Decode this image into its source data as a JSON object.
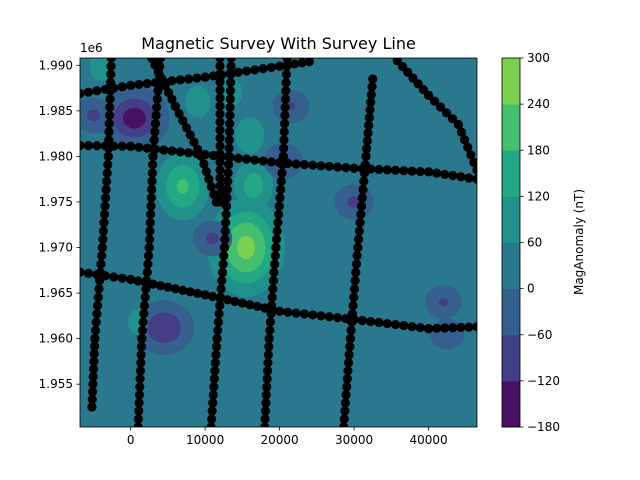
{
  "chart_data": {
    "type": "heatmap",
    "subtype": "filled-contour with survey-line scatter overlay",
    "title": "Magnetic Survey With Survey Line",
    "xlabel": "",
    "ylabel": "",
    "y_offset_text": "1e6",
    "xlim": [
      -6800,
      46500
    ],
    "ylim": [
      1950300,
      1990800
    ],
    "x_ticks": [
      0,
      10000,
      20000,
      30000,
      40000
    ],
    "x_tick_labels": [
      "0",
      "10000",
      "20000",
      "30000",
      "40000"
    ],
    "y_ticks": [
      1955000,
      1960000,
      1965000,
      1970000,
      1975000,
      1980000,
      1985000,
      1990000
    ],
    "y_tick_labels": [
      "1.955",
      "1.960",
      "1.965",
      "1.970",
      "1.975",
      "1.980",
      "1.985",
      "1.990"
    ],
    "grid": false,
    "colorbar": {
      "label": "MagAnomaly (nT)",
      "levels": [
        -180,
        -120,
        -60,
        0,
        60,
        120,
        180,
        240,
        300
      ],
      "tick_labels": [
        "−180",
        "−120",
        "−60",
        "0",
        "60",
        "120",
        "180",
        "240",
        "300"
      ],
      "colors": [
        "#471164",
        "#433e85",
        "#35608d",
        "#2a788e",
        "#21918c",
        "#22a884",
        "#44bf70",
        "#7ad151",
        "#d2e21b"
      ]
    },
    "background_level_color": "#2a788e",
    "anomalies": [
      {
        "x": 500,
        "y": 1984200,
        "value": -130
      },
      {
        "x": 4500,
        "y": 1961200,
        "value": -110
      },
      {
        "x": 1000,
        "y": 1961800,
        "value": 95
      },
      {
        "x": 15500,
        "y": 1970000,
        "value": 260
      },
      {
        "x": 7000,
        "y": 1976700,
        "value": 190
      },
      {
        "x": 16500,
        "y": 1976800,
        "value": 150
      },
      {
        "x": 16000,
        "y": 1982300,
        "value": 120
      },
      {
        "x": 9000,
        "y": 1986000,
        "value": 110
      },
      {
        "x": 13500,
        "y": 1987000,
        "value": 100
      },
      {
        "x": -4000,
        "y": 1989800,
        "value": 100
      },
      {
        "x": 11000,
        "y": 1971000,
        "value": -70
      },
      {
        "x": -5000,
        "y": 1984500,
        "value": -70
      },
      {
        "x": 42000,
        "y": 1964000,
        "value": -65
      },
      {
        "x": 20500,
        "y": 1979500,
        "value": -70
      },
      {
        "x": 30000,
        "y": 1975000,
        "value": -70
      },
      {
        "x": 42500,
        "y": 1960500,
        "value": -60
      },
      {
        "x": 21500,
        "y": 1985500,
        "value": -65
      }
    ],
    "survey_line": {
      "marker": "o",
      "color": "#000000",
      "segments": [
        [
          [
            -6800,
            1986900
          ],
          [
            0,
            1987800
          ],
          [
            10000,
            1988700
          ],
          [
            20000,
            1989900
          ],
          [
            24000,
            1990400
          ]
        ],
        [
          [
            -6800,
            1981200
          ],
          [
            0,
            1981100
          ],
          [
            10000,
            1980200
          ],
          [
            20000,
            1979300
          ],
          [
            30000,
            1978700
          ],
          [
            40000,
            1978300
          ],
          [
            46500,
            1977500
          ]
        ],
        [
          [
            -6800,
            1967300
          ],
          [
            0,
            1966500
          ],
          [
            10000,
            1964800
          ],
          [
            20000,
            1963000
          ],
          [
            30000,
            1962100
          ],
          [
            40000,
            1961100
          ],
          [
            46500,
            1961300
          ]
        ],
        [
          [
            2800,
            1990800
          ],
          [
            6000,
            1985500
          ],
          [
            9500,
            1980000
          ],
          [
            11500,
            1975000
          ]
        ],
        [
          [
            12000,
            1990800
          ],
          [
            12000,
            1975000
          ]
        ],
        [
          [
            -2600,
            1990800
          ],
          [
            -3000,
            1980000
          ],
          [
            -3800,
            1970000
          ],
          [
            -4800,
            1960000
          ],
          [
            -5200,
            1952500
          ]
        ],
        [
          [
            4000,
            1990800
          ],
          [
            3000,
            1980000
          ],
          [
            2500,
            1970000
          ],
          [
            1500,
            1960000
          ],
          [
            1000,
            1950300
          ]
        ],
        [
          [
            13500,
            1990800
          ],
          [
            13200,
            1980000
          ],
          [
            12600,
            1970000
          ],
          [
            11600,
            1960000
          ],
          [
            10800,
            1950300
          ]
        ],
        [
          [
            21000,
            1990800
          ],
          [
            20500,
            1980000
          ],
          [
            19500,
            1970000
          ],
          [
            18600,
            1960000
          ],
          [
            18000,
            1950300
          ]
        ],
        [
          [
            32500,
            1988500
          ],
          [
            31600,
            1980000
          ],
          [
            30500,
            1970000
          ],
          [
            29500,
            1960000
          ],
          [
            28600,
            1950300
          ]
        ],
        [
          [
            35800,
            1990500
          ],
          [
            40000,
            1986700
          ],
          [
            44000,
            1983500
          ],
          [
            46500,
            1978500
          ]
        ]
      ]
    }
  }
}
